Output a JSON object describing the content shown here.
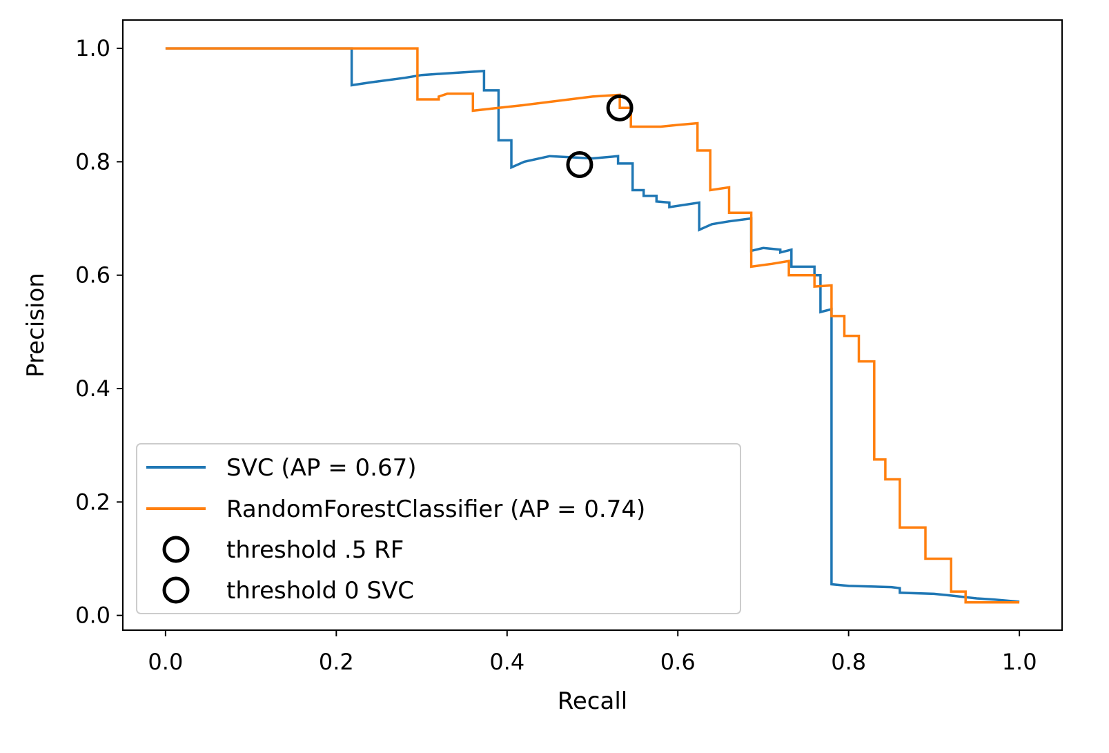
{
  "chart_data": {
    "type": "line",
    "xlabel": "Recall",
    "ylabel": "Precision",
    "xlim": [
      -0.05,
      1.05
    ],
    "ylim": [
      -0.026,
      1.05
    ],
    "xticks": [
      "0.0",
      "0.2",
      "0.4",
      "0.6",
      "0.8",
      "1.0"
    ],
    "yticks": [
      "0.0",
      "0.2",
      "0.4",
      "0.6",
      "0.8",
      "1.0"
    ],
    "grid": false,
    "legend_position": "lower-left",
    "series": [
      {
        "name": "SVC (AP = 0.67)",
        "color": "#1f77b4",
        "steps": [
          [
            0.0,
            1.0
          ],
          [
            0.218,
            1.0
          ],
          [
            0.218,
            0.935
          ],
          [
            0.24,
            0.94
          ],
          [
            0.28,
            0.948
          ],
          [
            0.3,
            0.953
          ],
          [
            0.33,
            0.956
          ],
          [
            0.373,
            0.96
          ],
          [
            0.373,
            0.926
          ],
          [
            0.39,
            0.926
          ],
          [
            0.39,
            0.838
          ],
          [
            0.405,
            0.838
          ],
          [
            0.405,
            0.79
          ],
          [
            0.42,
            0.8
          ],
          [
            0.45,
            0.81
          ],
          [
            0.5,
            0.806
          ],
          [
            0.53,
            0.81
          ],
          [
            0.53,
            0.797
          ],
          [
            0.547,
            0.797
          ],
          [
            0.547,
            0.75
          ],
          [
            0.56,
            0.75
          ],
          [
            0.56,
            0.74
          ],
          [
            0.575,
            0.74
          ],
          [
            0.575,
            0.73
          ],
          [
            0.59,
            0.728
          ],
          [
            0.59,
            0.72
          ],
          [
            0.625,
            0.728
          ],
          [
            0.625,
            0.68
          ],
          [
            0.64,
            0.69
          ],
          [
            0.66,
            0.695
          ],
          [
            0.686,
            0.7
          ],
          [
            0.686,
            0.643
          ],
          [
            0.7,
            0.648
          ],
          [
            0.72,
            0.645
          ],
          [
            0.72,
            0.64
          ],
          [
            0.733,
            0.645
          ],
          [
            0.733,
            0.615
          ],
          [
            0.76,
            0.615
          ],
          [
            0.76,
            0.6
          ],
          [
            0.767,
            0.6
          ],
          [
            0.767,
            0.535
          ],
          [
            0.78,
            0.54
          ],
          [
            0.78,
            0.055
          ],
          [
            0.8,
            0.052
          ],
          [
            0.85,
            0.05
          ],
          [
            0.86,
            0.048
          ],
          [
            0.86,
            0.04
          ],
          [
            0.9,
            0.038
          ],
          [
            0.92,
            0.035
          ],
          [
            0.95,
            0.03
          ],
          [
            0.97,
            0.028
          ],
          [
            1.0,
            0.024
          ]
        ]
      },
      {
        "name": "RandomForestClassifier (AP = 0.74)",
        "color": "#ff7f0e",
        "steps": [
          [
            0.0,
            1.0
          ],
          [
            0.295,
            1.0
          ],
          [
            0.295,
            0.91
          ],
          [
            0.32,
            0.91
          ],
          [
            0.32,
            0.915
          ],
          [
            0.33,
            0.92
          ],
          [
            0.36,
            0.92
          ],
          [
            0.36,
            0.89
          ],
          [
            0.39,
            0.895
          ],
          [
            0.42,
            0.9
          ],
          [
            0.5,
            0.915
          ],
          [
            0.532,
            0.918
          ],
          [
            0.532,
            0.895
          ],
          [
            0.54,
            0.895
          ],
          [
            0.545,
            0.895
          ],
          [
            0.545,
            0.862
          ],
          [
            0.58,
            0.862
          ],
          [
            0.6,
            0.865
          ],
          [
            0.623,
            0.868
          ],
          [
            0.623,
            0.82
          ],
          [
            0.638,
            0.82
          ],
          [
            0.638,
            0.75
          ],
          [
            0.66,
            0.755
          ],
          [
            0.66,
            0.71
          ],
          [
            0.686,
            0.71
          ],
          [
            0.686,
            0.615
          ],
          [
            0.71,
            0.62
          ],
          [
            0.73,
            0.625
          ],
          [
            0.73,
            0.6
          ],
          [
            0.76,
            0.6
          ],
          [
            0.76,
            0.58
          ],
          [
            0.78,
            0.582
          ],
          [
            0.78,
            0.528
          ],
          [
            0.795,
            0.528
          ],
          [
            0.795,
            0.493
          ],
          [
            0.812,
            0.493
          ],
          [
            0.812,
            0.448
          ],
          [
            0.83,
            0.448
          ],
          [
            0.83,
            0.275
          ],
          [
            0.843,
            0.275
          ],
          [
            0.843,
            0.24
          ],
          [
            0.86,
            0.24
          ],
          [
            0.86,
            0.155
          ],
          [
            0.89,
            0.155
          ],
          [
            0.89,
            0.1
          ],
          [
            0.92,
            0.1
          ],
          [
            0.92,
            0.042
          ],
          [
            0.937,
            0.042
          ],
          [
            0.937,
            0.023
          ],
          [
            1.0,
            0.023
          ]
        ]
      }
    ],
    "markers": [
      {
        "name": "threshold .5 RF",
        "x": 0.532,
        "y": 0.895
      },
      {
        "name": "threshold 0 SVC",
        "x": 0.485,
        "y": 0.795
      }
    ]
  }
}
